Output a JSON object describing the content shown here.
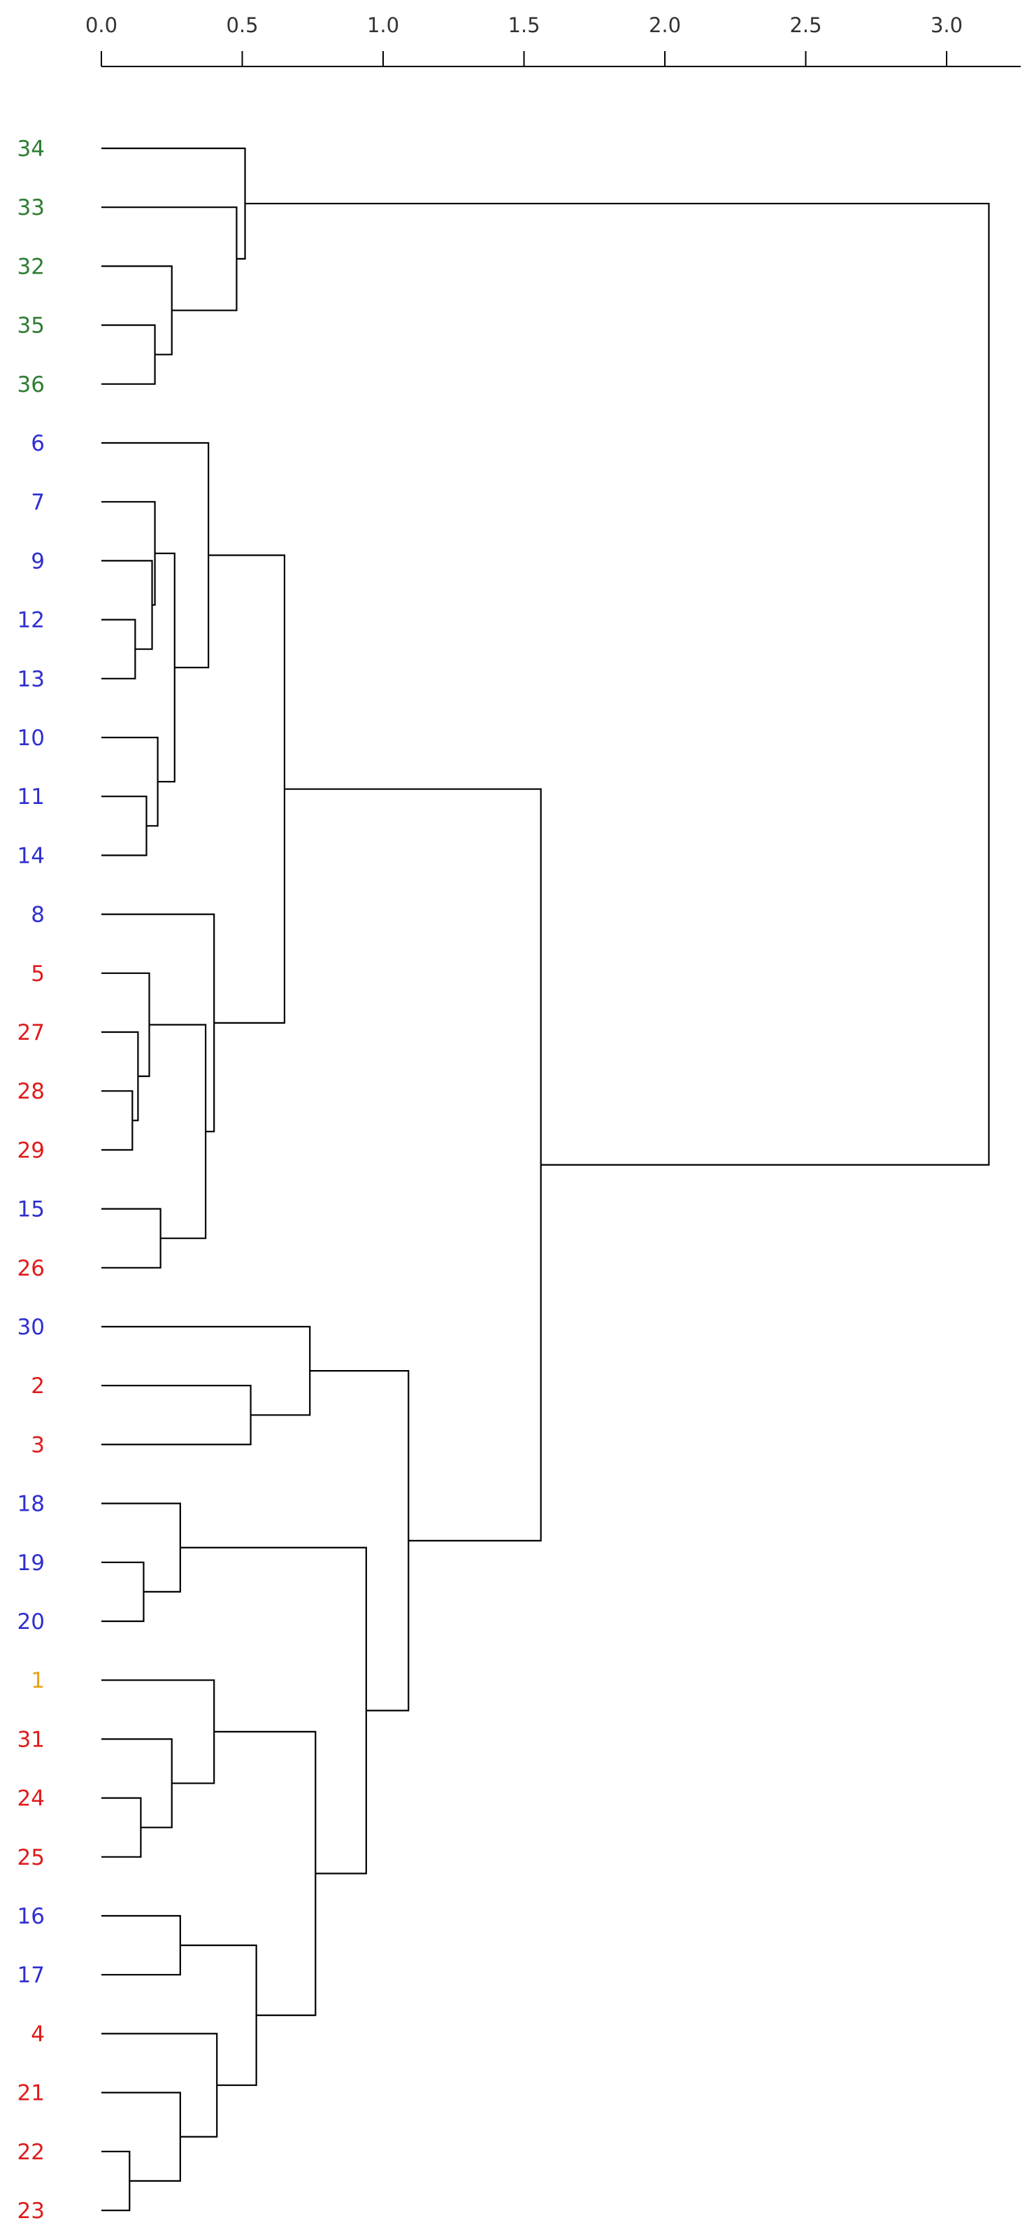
{
  "dendrogram": {
    "axis": {
      "ticks": [
        "0.0",
        "0.5",
        "1.0",
        "1.5",
        "2.0",
        "2.5",
        "3.0"
      ],
      "tick_values": [
        0,
        0.5,
        1.0,
        1.5,
        2.0,
        2.5,
        3.0
      ],
      "range": [
        0,
        3.15
      ]
    },
    "colors": {
      "green": "#2e7d32",
      "blue": "#2f2fd0",
      "red": "#e01b1b",
      "orange": "#e8a317",
      "branch": "#000000"
    },
    "leaves": [
      {
        "label": "34",
        "color": "green"
      },
      {
        "label": "33",
        "color": "green"
      },
      {
        "label": "32",
        "color": "green"
      },
      {
        "label": "35",
        "color": "green"
      },
      {
        "label": "36",
        "color": "green"
      },
      {
        "label": "6",
        "color": "blue"
      },
      {
        "label": "7",
        "color": "blue"
      },
      {
        "label": "9",
        "color": "blue"
      },
      {
        "label": "12",
        "color": "blue"
      },
      {
        "label": "13",
        "color": "blue"
      },
      {
        "label": "10",
        "color": "blue"
      },
      {
        "label": "11",
        "color": "blue"
      },
      {
        "label": "14",
        "color": "blue"
      },
      {
        "label": "8",
        "color": "blue"
      },
      {
        "label": "5",
        "color": "red"
      },
      {
        "label": "27",
        "color": "red"
      },
      {
        "label": "28",
        "color": "red"
      },
      {
        "label": "29",
        "color": "red"
      },
      {
        "label": "15",
        "color": "blue"
      },
      {
        "label": "26",
        "color": "red"
      },
      {
        "label": "30",
        "color": "blue"
      },
      {
        "label": "2",
        "color": "red"
      },
      {
        "label": "3",
        "color": "red"
      },
      {
        "label": "18",
        "color": "blue"
      },
      {
        "label": "19",
        "color": "blue"
      },
      {
        "label": "20",
        "color": "blue"
      },
      {
        "label": "1",
        "color": "orange"
      },
      {
        "label": "31",
        "color": "red"
      },
      {
        "label": "24",
        "color": "red"
      },
      {
        "label": "25",
        "color": "red"
      },
      {
        "label": "16",
        "color": "blue"
      },
      {
        "label": "17",
        "color": "blue"
      },
      {
        "label": "4",
        "color": "red"
      },
      {
        "label": "21",
        "color": "red"
      },
      {
        "label": "22",
        "color": "red"
      },
      {
        "label": "23",
        "color": "red"
      }
    ],
    "merges": [
      {
        "a": "L35",
        "b": "L36",
        "h": 0.19
      },
      {
        "a": "L32",
        "b": "M0",
        "h": 0.25
      },
      {
        "a": "L33",
        "b": "M1",
        "h": 0.48
      },
      {
        "a": "L34",
        "b": "M2",
        "h": 0.51
      },
      {
        "a": "L12",
        "b": "L13",
        "h": 0.12
      },
      {
        "a": "L9",
        "b": "M4",
        "h": 0.18
      },
      {
        "a": "L7",
        "b": "M5",
        "h": 0.19
      },
      {
        "a": "L11",
        "b": "L14",
        "h": 0.16
      },
      {
        "a": "L10",
        "b": "M7",
        "h": 0.2
      },
      {
        "a": "M6",
        "b": "M8",
        "h": 0.26
      },
      {
        "a": "L6",
        "b": "M9",
        "h": 0.38
      },
      {
        "a": "L28",
        "b": "L29",
        "h": 0.11
      },
      {
        "a": "L27",
        "b": "M11",
        "h": 0.13
      },
      {
        "a": "L5",
        "b": "M12",
        "h": 0.17
      },
      {
        "a": "L15",
        "b": "L26",
        "h": 0.21
      },
      {
        "a": "M13",
        "b": "M14",
        "h": 0.37
      },
      {
        "a": "L8",
        "b": "M15",
        "h": 0.4
      },
      {
        "a": "M10",
        "b": "M16",
        "h": 0.65
      },
      {
        "a": "L2",
        "b": "L3",
        "h": 0.53
      },
      {
        "a": "L30",
        "b": "M18",
        "h": 0.74
      },
      {
        "a": "L19",
        "b": "L20",
        "h": 0.15
      },
      {
        "a": "L18",
        "b": "M20",
        "h": 0.28
      },
      {
        "a": "L24",
        "b": "L25",
        "h": 0.14
      },
      {
        "a": "L31",
        "b": "M22",
        "h": 0.25
      },
      {
        "a": "L1",
        "b": "M23",
        "h": 0.4
      },
      {
        "a": "L16",
        "b": "L17",
        "h": 0.28
      },
      {
        "a": "L22",
        "b": "L23",
        "h": 0.1
      },
      {
        "a": "L21",
        "b": "M26",
        "h": 0.28
      },
      {
        "a": "L4",
        "b": "M27",
        "h": 0.41
      },
      {
        "a": "M25",
        "b": "M28",
        "h": 0.55
      },
      {
        "a": "M24",
        "b": "M29",
        "h": 0.76
      },
      {
        "a": "M21",
        "b": "M30",
        "h": 0.94
      },
      {
        "a": "M19",
        "b": "M31",
        "h": 1.09
      },
      {
        "a": "M17",
        "b": "M32",
        "h": 1.56
      },
      {
        "a": "M3",
        "b": "M33",
        "h": 3.15
      }
    ]
  }
}
